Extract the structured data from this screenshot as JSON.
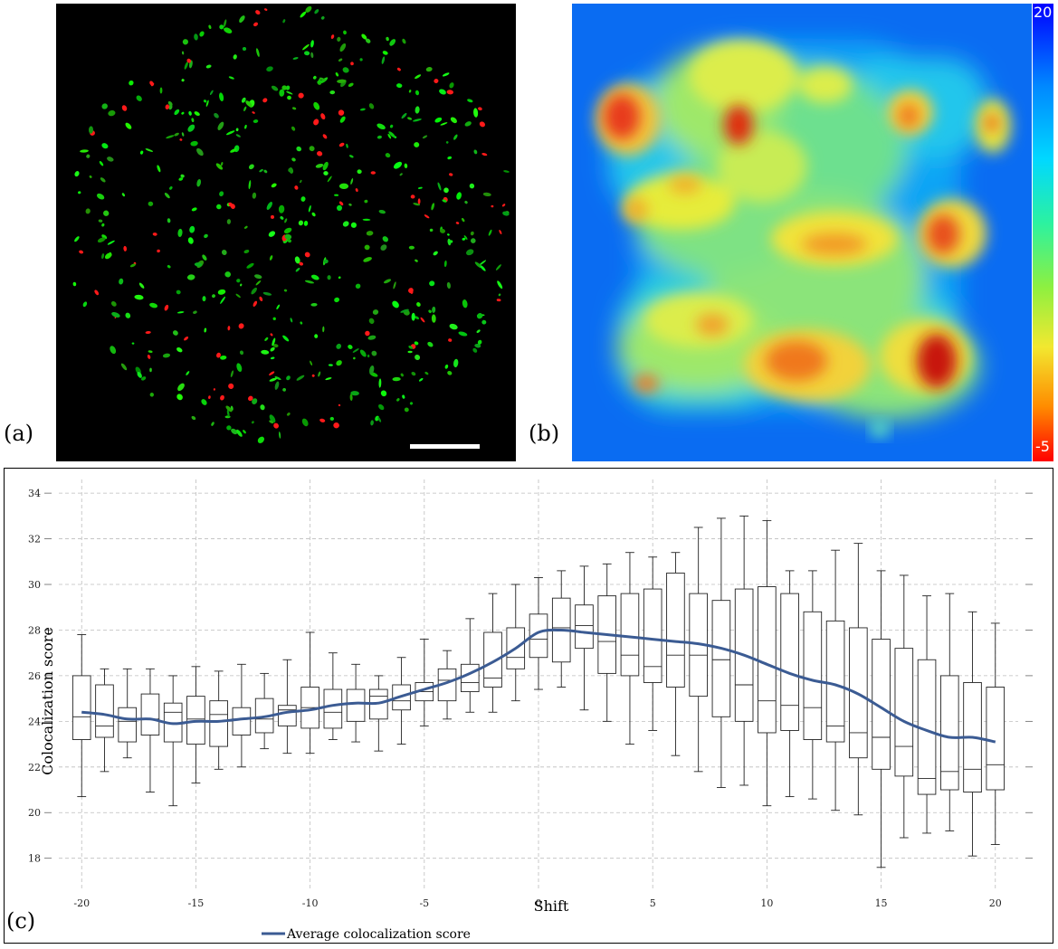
{
  "panels": {
    "a_label": "(a)",
    "b_label": "(b)",
    "c_label": "(c)"
  },
  "colorbar": {
    "max_label": "20",
    "min_label": "-5"
  },
  "chart_data": {
    "type": "box",
    "xlabel": "Shift",
    "ylabel": "Colocalization score",
    "xlim": [
      -21,
      21
    ],
    "ylim": [
      16.6,
      34.6
    ],
    "xticks": [
      -20,
      -15,
      -10,
      -5,
      0,
      5,
      10,
      15,
      20
    ],
    "yticks": [
      18,
      20,
      22,
      24,
      26,
      28,
      30,
      32,
      34
    ],
    "grid": true,
    "legend": {
      "position": "bottom-left",
      "entries": [
        "Average colocalization score"
      ]
    },
    "x": [
      -20,
      -19,
      -18,
      -17,
      -16,
      -15,
      -14,
      -13,
      -12,
      -11,
      -10,
      -9,
      -8,
      -7,
      -6,
      -5,
      -4,
      -3,
      -2,
      -1,
      0,
      1,
      2,
      3,
      4,
      5,
      6,
      7,
      8,
      9,
      10,
      11,
      12,
      13,
      14,
      15,
      16,
      17,
      18,
      19,
      20
    ],
    "boxes": [
      {
        "x": -20,
        "min": 20.7,
        "q1": 23.2,
        "median": 24.2,
        "q3": 26.0,
        "max": 27.8
      },
      {
        "x": -19,
        "min": 21.8,
        "q1": 23.3,
        "median": 23.8,
        "q3": 25.6,
        "max": 26.3
      },
      {
        "x": -18,
        "min": 22.4,
        "q1": 23.1,
        "median": 24.0,
        "q3": 24.6,
        "max": 26.3
      },
      {
        "x": -17,
        "min": 20.9,
        "q1": 23.4,
        "median": 24.1,
        "q3": 25.2,
        "max": 26.3
      },
      {
        "x": -16,
        "min": 20.3,
        "q1": 23.1,
        "median": 24.4,
        "q3": 24.8,
        "max": 26.0
      },
      {
        "x": -15,
        "min": 21.3,
        "q1": 23.0,
        "median": 24.1,
        "q3": 25.1,
        "max": 26.4
      },
      {
        "x": -14,
        "min": 21.9,
        "q1": 22.9,
        "median": 24.3,
        "q3": 24.9,
        "max": 26.2
      },
      {
        "x": -13,
        "min": 22.0,
        "q1": 23.4,
        "median": 24.1,
        "q3": 24.6,
        "max": 26.5
      },
      {
        "x": -12,
        "min": 22.8,
        "q1": 23.5,
        "median": 24.1,
        "q3": 25.0,
        "max": 26.1
      },
      {
        "x": -11,
        "min": 22.6,
        "q1": 23.8,
        "median": 24.5,
        "q3": 24.7,
        "max": 26.7
      },
      {
        "x": -10,
        "min": 22.6,
        "q1": 23.7,
        "median": 24.6,
        "q3": 25.5,
        "max": 27.9
      },
      {
        "x": -9,
        "min": 23.2,
        "q1": 23.7,
        "median": 24.4,
        "q3": 25.4,
        "max": 27.0
      },
      {
        "x": -8,
        "min": 23.1,
        "q1": 24.0,
        "median": 24.8,
        "q3": 25.4,
        "max": 26.5
      },
      {
        "x": -7,
        "min": 22.7,
        "q1": 24.1,
        "median": 25.1,
        "q3": 25.4,
        "max": 26.0
      },
      {
        "x": -6,
        "min": 23.0,
        "q1": 24.5,
        "median": 24.9,
        "q3": 25.6,
        "max": 26.8
      },
      {
        "x": -5,
        "min": 23.8,
        "q1": 24.9,
        "median": 25.3,
        "q3": 25.7,
        "max": 27.6
      },
      {
        "x": -4,
        "min": 24.1,
        "q1": 24.9,
        "median": 25.8,
        "q3": 26.3,
        "max": 27.1
      },
      {
        "x": -3,
        "min": 24.4,
        "q1": 25.3,
        "median": 25.7,
        "q3": 26.5,
        "max": 28.5
      },
      {
        "x": -2,
        "min": 24.4,
        "q1": 25.5,
        "median": 25.9,
        "q3": 27.9,
        "max": 29.6
      },
      {
        "x": -1,
        "min": 24.9,
        "q1": 26.3,
        "median": 26.8,
        "q3": 28.1,
        "max": 30.0
      },
      {
        "x": 0,
        "min": 25.4,
        "q1": 26.8,
        "median": 27.6,
        "q3": 28.7,
        "max": 30.3
      },
      {
        "x": 1,
        "min": 25.5,
        "q1": 26.6,
        "median": 28.1,
        "q3": 29.4,
        "max": 30.6
      },
      {
        "x": 2,
        "min": 24.5,
        "q1": 27.2,
        "median": 28.2,
        "q3": 29.1,
        "max": 30.8
      },
      {
        "x": 3,
        "min": 24.0,
        "q1": 26.1,
        "median": 27.5,
        "q3": 29.5,
        "max": 30.9
      },
      {
        "x": 4,
        "min": 23.0,
        "q1": 26.0,
        "median": 26.9,
        "q3": 29.6,
        "max": 31.4
      },
      {
        "x": 5,
        "min": 23.6,
        "q1": 25.7,
        "median": 26.4,
        "q3": 29.8,
        "max": 31.2
      },
      {
        "x": 6,
        "min": 22.5,
        "q1": 25.5,
        "median": 26.9,
        "q3": 30.5,
        "max": 31.4
      },
      {
        "x": 7,
        "min": 21.8,
        "q1": 25.1,
        "median": 26.9,
        "q3": 29.6,
        "max": 32.5
      },
      {
        "x": 8,
        "min": 21.1,
        "q1": 24.2,
        "median": 26.7,
        "q3": 29.3,
        "max": 32.9
      },
      {
        "x": 9,
        "min": 21.2,
        "q1": 24.0,
        "median": 25.6,
        "q3": 29.8,
        "max": 33.0
      },
      {
        "x": 10,
        "min": 20.3,
        "q1": 23.5,
        "median": 24.9,
        "q3": 29.9,
        "max": 32.8
      },
      {
        "x": 11,
        "min": 20.7,
        "q1": 23.6,
        "median": 24.7,
        "q3": 29.6,
        "max": 30.6
      },
      {
        "x": 12,
        "min": 20.6,
        "q1": 23.2,
        "median": 24.6,
        "q3": 28.8,
        "max": 30.6
      },
      {
        "x": 13,
        "min": 20.1,
        "q1": 23.1,
        "median": 23.8,
        "q3": 28.4,
        "max": 31.5
      },
      {
        "x": 14,
        "min": 19.9,
        "q1": 22.4,
        "median": 23.5,
        "q3": 28.1,
        "max": 31.8
      },
      {
        "x": 15,
        "min": 17.6,
        "q1": 21.9,
        "median": 23.3,
        "q3": 27.6,
        "max": 30.6
      },
      {
        "x": 16,
        "min": 18.9,
        "q1": 21.6,
        "median": 22.9,
        "q3": 27.2,
        "max": 30.4
      },
      {
        "x": 17,
        "min": 19.1,
        "q1": 20.8,
        "median": 21.5,
        "q3": 26.7,
        "max": 29.5
      },
      {
        "x": 18,
        "min": 19.2,
        "q1": 21.0,
        "median": 21.8,
        "q3": 26.0,
        "max": 29.6
      },
      {
        "x": 19,
        "min": 18.1,
        "q1": 20.9,
        "median": 21.9,
        "q3": 25.7,
        "max": 28.8
      },
      {
        "x": 20,
        "min": 18.6,
        "q1": 21.0,
        "median": 22.1,
        "q3": 25.5,
        "max": 28.3
      }
    ],
    "series": [
      {
        "name": "Average colocalization score",
        "color": "#3b5b93",
        "values": [
          24.4,
          24.3,
          24.1,
          24.1,
          23.9,
          24.0,
          24.0,
          24.1,
          24.2,
          24.4,
          24.5,
          24.7,
          24.8,
          24.8,
          25.1,
          25.4,
          25.7,
          26.1,
          26.6,
          27.2,
          27.9,
          28.0,
          27.9,
          27.8,
          27.7,
          27.6,
          27.5,
          27.4,
          27.2,
          26.9,
          26.5,
          26.1,
          25.8,
          25.6,
          25.2,
          24.6,
          24.0,
          23.6,
          23.3,
          23.3,
          23.1
        ]
      }
    ]
  }
}
